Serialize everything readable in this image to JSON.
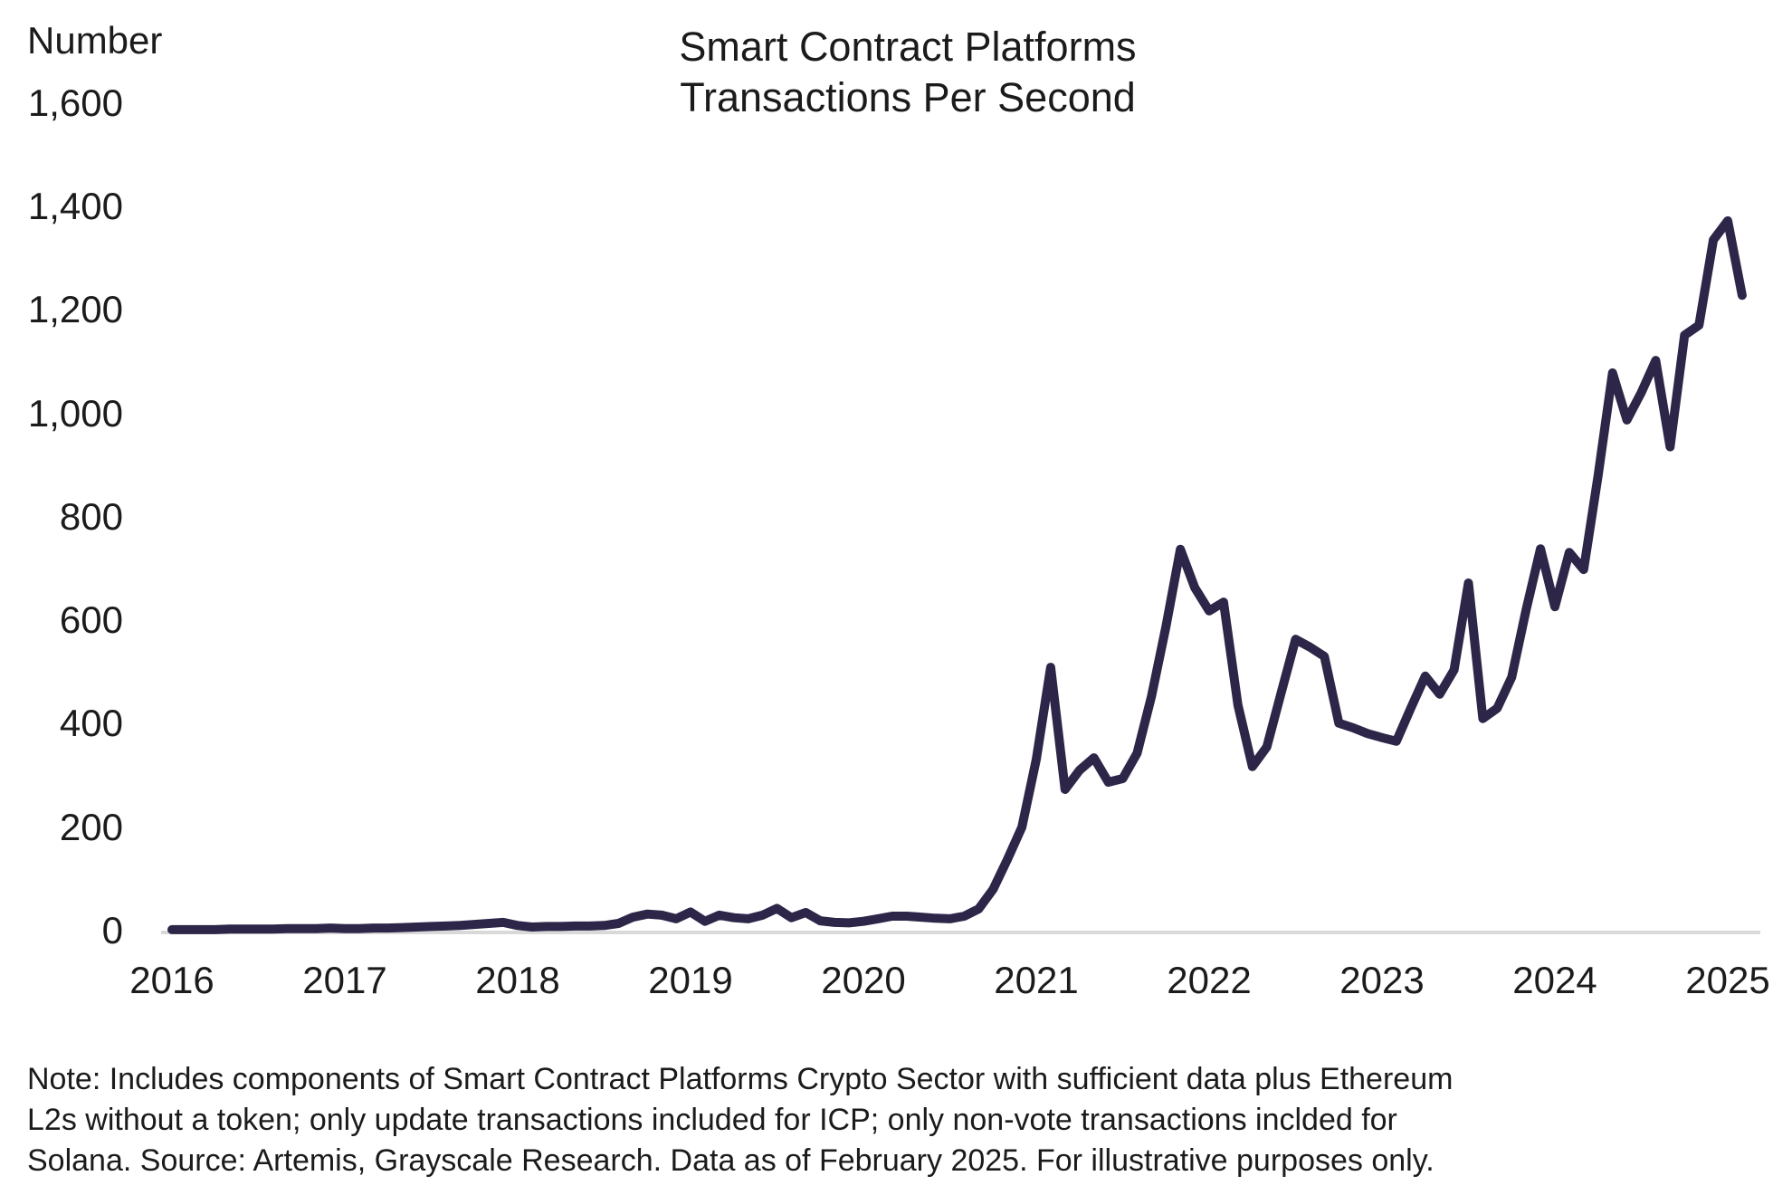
{
  "title": {
    "line1": "Smart Contract Platforms",
    "line2": "Transactions Per Second"
  },
  "y_axis": {
    "label": "Number",
    "tick_labels": [
      "1,600",
      "1,400",
      "1,200",
      "1,000",
      "800",
      "600",
      "400",
      "200",
      "0"
    ],
    "tick_values": [
      1600,
      1400,
      1200,
      1000,
      800,
      600,
      400,
      200,
      0
    ]
  },
  "x_axis": {
    "tick_labels": [
      "2016",
      "2017",
      "2018",
      "2019",
      "2020",
      "2021",
      "2022",
      "2023",
      "2024",
      "2025"
    ]
  },
  "note": {
    "line1": "Note: Includes components of Smart Contract Platforms Crypto Sector with sufficient data plus Ethereum",
    "line2": "L2s without a token; only update transactions included for ICP; only non-vote transactions inclded for",
    "line3": "Solana. Source: Artemis, Grayscale Research. Data as of February 2025. For illustrative purposes only."
  },
  "colors": {
    "line": "#2e2649",
    "axis_line": "#d9d9d9",
    "text": "#1b1b1b",
    "background": "#ffffff"
  },
  "chart_data": {
    "type": "line",
    "title": "Smart Contract Platforms Transactions Per Second",
    "ylabel": "Number",
    "ylim": [
      0,
      1600
    ],
    "frequency": "monthly",
    "x_start": "2016-01",
    "x_end": "2025-02",
    "x_tick_years": [
      2016,
      2017,
      2018,
      2019,
      2020,
      2021,
      2022,
      2023,
      2024,
      2025
    ],
    "gridlines": false,
    "legend": "none",
    "series": [
      {
        "name": "Smart Contract Platforms transactions per second",
        "values": [
          2,
          2,
          2,
          2,
          3,
          3,
          3,
          3,
          4,
          4,
          4,
          5,
          4,
          4,
          5,
          5,
          6,
          7,
          8,
          9,
          10,
          12,
          14,
          16,
          10,
          7,
          8,
          8,
          9,
          9,
          10,
          14,
          26,
          32,
          30,
          23,
          36,
          18,
          30,
          25,
          23,
          30,
          43,
          25,
          35,
          19,
          16,
          15,
          18,
          23,
          28,
          28,
          26,
          24,
          23,
          28,
          42,
          80,
          138,
          200,
          331,
          509,
          273,
          310,
          334,
          287,
          294,
          343,
          453,
          588,
          737,
          663,
          618,
          635,
          436,
          317,
          355,
          460,
          563,
          548,
          530,
          401,
          392,
          381,
          373,
          366,
          430,
          492,
          457,
          504,
          672,
          410,
          430,
          490,
          620,
          738,
          626,
          731,
          698,
          880,
          1078,
          987,
          1040,
          1102,
          935,
          1151,
          1170,
          1335,
          1372,
          1228
        ]
      }
    ]
  }
}
